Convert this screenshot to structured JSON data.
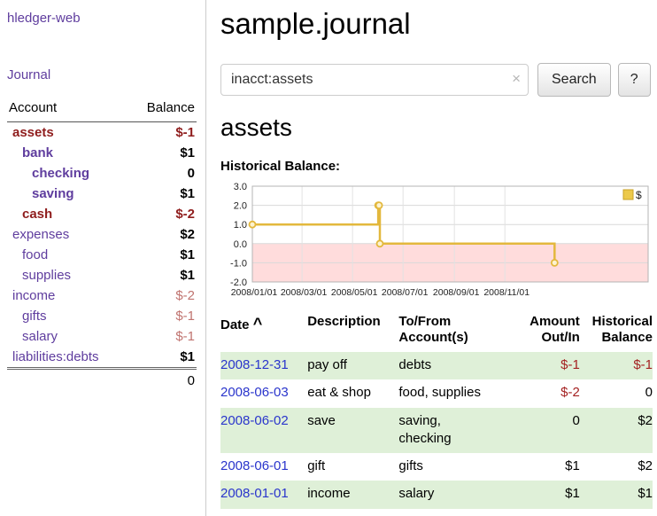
{
  "colors": {
    "link_purple": "#5f3d9e",
    "link_blue": "#2a35cc",
    "negative_red": "#8f1d1d",
    "negative_light": "#c0736f",
    "amount_red": "#a42222",
    "row_green": "#dff0d8"
  },
  "sidebar": {
    "app_title": "hledger-web",
    "journal_link": "Journal",
    "table": {
      "account_header": "Account",
      "balance_header": "Balance",
      "rows": [
        {
          "name": "assets",
          "balance": "$-1",
          "indent": 1,
          "bold": true,
          "balance_bold": true,
          "name_color": "neg",
          "balance_color": "neg"
        },
        {
          "name": "bank",
          "balance": "$1",
          "indent": 2,
          "bold": true,
          "balance_bold": true,
          "name_color": "link",
          "balance_color": "norm"
        },
        {
          "name": "checking",
          "balance": "0",
          "indent": 3,
          "bold": true,
          "balance_bold": true,
          "name_color": "link",
          "balance_color": "norm"
        },
        {
          "name": "saving",
          "balance": "$1",
          "indent": 3,
          "bold": true,
          "balance_bold": true,
          "name_color": "link",
          "balance_color": "norm"
        },
        {
          "name": "cash",
          "balance": "$-2",
          "indent": 2,
          "bold": true,
          "balance_bold": true,
          "name_color": "neg",
          "balance_color": "neg"
        },
        {
          "name": "expenses",
          "balance": "$2",
          "indent": 1,
          "bold": false,
          "balance_bold": true,
          "name_color": "link",
          "balance_color": "norm"
        },
        {
          "name": "food",
          "balance": "$1",
          "indent": 2,
          "bold": false,
          "balance_bold": true,
          "name_color": "link",
          "balance_color": "norm"
        },
        {
          "name": "supplies",
          "balance": "$1",
          "indent": 2,
          "bold": false,
          "balance_bold": true,
          "name_color": "link",
          "balance_color": "norm"
        },
        {
          "name": "income",
          "balance": "$-2",
          "indent": 1,
          "bold": false,
          "balance_bold": false,
          "name_color": "link",
          "balance_color": "neg-light"
        },
        {
          "name": "gifts",
          "balance": "$-1",
          "indent": 2,
          "bold": false,
          "balance_bold": false,
          "name_color": "link",
          "balance_color": "neg-light"
        },
        {
          "name": "salary",
          "balance": "$-1",
          "indent": 2,
          "bold": false,
          "balance_bold": false,
          "name_color": "link",
          "balance_color": "neg-light"
        },
        {
          "name": "liabilities:debts",
          "balance": "$1",
          "indent": 1,
          "bold": false,
          "balance_bold": true,
          "name_color": "link",
          "balance_color": "norm"
        }
      ],
      "total": "0"
    }
  },
  "main": {
    "page_title": "sample.journal",
    "search": {
      "value": "inacct:assets",
      "clear_icon": "×",
      "button_label": "Search",
      "help_label": "?"
    },
    "account_heading": "assets",
    "chart_label": "Historical Balance:"
  },
  "chart_data": {
    "type": "line",
    "title": "Historical Balance:",
    "series": [
      {
        "name": "$",
        "step": true,
        "points": [
          {
            "date": "2008-01-01",
            "day": 0,
            "y": 1
          },
          {
            "date": "2008-06-01",
            "day": 152,
            "y": 2
          },
          {
            "date": "2008-06-02",
            "day": 153,
            "y": 2
          },
          {
            "date": "2008-06-03",
            "day": 154,
            "y": 0
          },
          {
            "date": "2008-12-31",
            "day": 365,
            "y": -1
          }
        ]
      }
    ],
    "ylim": [
      -2,
      3
    ],
    "y_ticks": [
      3,
      2,
      1,
      0,
      -1,
      -2
    ],
    "xlim_days": [
      0,
      478
    ],
    "x_tick_days": [
      0,
      60,
      121,
      182,
      244,
      305
    ],
    "x_tick_labels": [
      "2008/01/01",
      "2008/03/01",
      "2008/05/01",
      "2008/07/01",
      "2008/09/01",
      "2008/11/01"
    ],
    "legend": [
      {
        "label": "$",
        "color": "#ecc94b"
      }
    ],
    "legend_position": "top-right",
    "grid": true,
    "line_color": "#e3b83d",
    "negative_region_color": "#ffdcdc"
  },
  "register": {
    "headers": {
      "date": "Date",
      "description": "Description",
      "account": "To/From Account(s)",
      "amount": "Amount Out/In",
      "balance": "Historical Balance"
    },
    "sort_icon": "^",
    "rows": [
      {
        "date": "2008-12-31",
        "description": "pay off",
        "accounts": "debts",
        "amount": "$-1",
        "amount_negative": true,
        "balance": "$-1",
        "balance_negative": true,
        "shaded": true
      },
      {
        "date": "2008-06-03",
        "description": "eat & shop",
        "accounts": "food, supplies",
        "amount": "$-2",
        "amount_negative": true,
        "balance": "0",
        "balance_negative": false,
        "shaded": false
      },
      {
        "date": "2008-06-02",
        "description": "save",
        "accounts": "saving, checking",
        "amount": "0",
        "amount_negative": false,
        "balance": "$2",
        "balance_negative": false,
        "shaded": true
      },
      {
        "date": "2008-06-01",
        "description": "gift",
        "accounts": "gifts",
        "amount": "$1",
        "amount_negative": false,
        "balance": "$2",
        "balance_negative": false,
        "shaded": false
      },
      {
        "date": "2008-01-01",
        "description": "income",
        "accounts": "salary",
        "amount": "$1",
        "amount_negative": false,
        "balance": "$1",
        "balance_negative": false,
        "shaded": true
      }
    ]
  }
}
